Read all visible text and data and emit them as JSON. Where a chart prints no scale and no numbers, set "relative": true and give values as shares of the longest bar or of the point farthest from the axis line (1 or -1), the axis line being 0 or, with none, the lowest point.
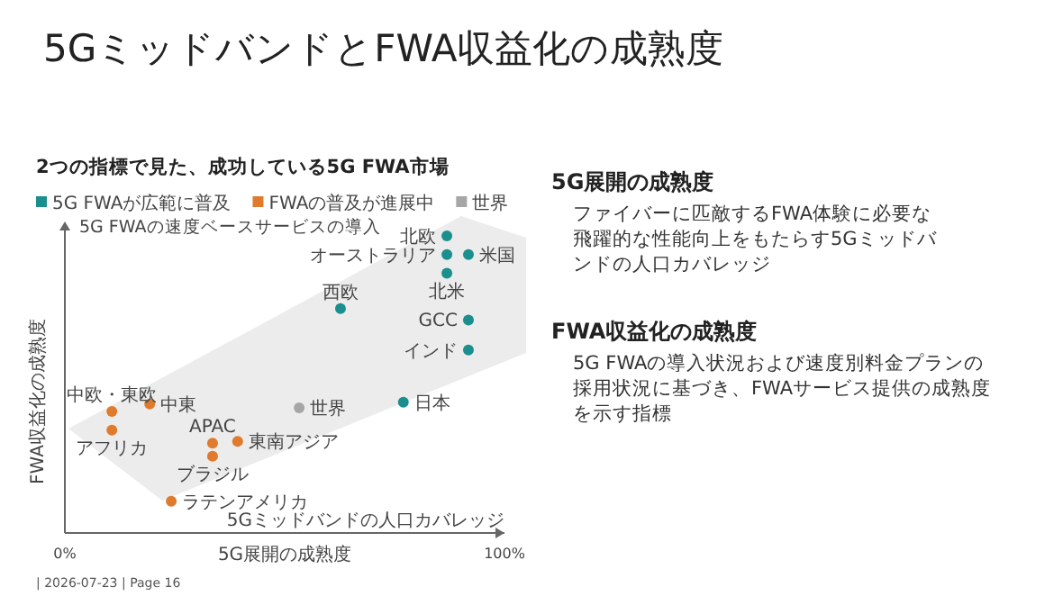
{
  "chart_data": {
    "type": "scatter",
    "title": "5GミッドバンドとFWA収益化の成熟度",
    "subtitle": "2つの指標で見た、成功している5G FWA市場",
    "xlabel": "5G展開の成熟度",
    "ylabel": "FWA収益化の成熟度",
    "relative": true,
    "xlim": [
      0,
      100
    ],
    "xticks": [
      {
        "value": 0,
        "label": "0%"
      },
      {
        "value": 100,
        "label": "100%"
      }
    ],
    "marker": "circle",
    "grid": false,
    "legend": "top left",
    "series": [
      {
        "name": "5G FWAが広範に普及",
        "color": "#1b8e8e",
        "x": [
          86.9,
          86.9,
          91.8,
          86.9,
          62.7,
          91.8,
          91.8,
          77.0
        ],
        "values": [
          1,
          0.937,
          0.937,
          0.874,
          0.755,
          0.717,
          0.616,
          0.44
        ]
      },
      {
        "name": "FWAの普及が進展中",
        "color": "#e07a2c",
        "x": [
          19.3,
          10.7,
          10.7,
          33.6,
          33.6,
          39.3,
          24.2
        ],
        "values": [
          0.434,
          0.409,
          0.346,
          0.302,
          0.258,
          0.308,
          0.107
        ]
      },
      {
        "name": "世界",
        "color": "#a6a6a6",
        "x": [
          53.3
        ],
        "values": [
          0.421
        ]
      }
    ],
    "annotations": [
      {
        "text": "北欧",
        "x": 86.9,
        "y": 1
      },
      {
        "text": "オーストラリア",
        "x": 86.9,
        "y": 0.937
      },
      {
        "text": "米国",
        "x": 91.8,
        "y": 0.937
      },
      {
        "text": "北米",
        "x": 86.9,
        "y": 0.874
      },
      {
        "text": "西欧",
        "x": 62.7,
        "y": 0.755
      },
      {
        "text": "GCC",
        "x": 91.8,
        "y": 0.717
      },
      {
        "text": "インド",
        "x": 91.8,
        "y": 0.616
      },
      {
        "text": "日本",
        "x": 77.0,
        "y": 0.44
      },
      {
        "text": "中東",
        "x": 19.3,
        "y": 0.434
      },
      {
        "text": "中欧・東欧",
        "x": 10.7,
        "y": 0.409
      },
      {
        "text": "アフリカ",
        "x": 10.7,
        "y": 0.346
      },
      {
        "text": "APAC",
        "x": 33.6,
        "y": 0.302
      },
      {
        "text": "ブラジル",
        "x": 33.6,
        "y": 0.258
      },
      {
        "text": "東南アジア",
        "x": 39.3,
        "y": 0.308
      },
      {
        "text": "ラテンアメリカ",
        "x": 24.2,
        "y": 0.107
      },
      {
        "text": "世界",
        "x": 53.3,
        "y": 0.421
      },
      "5G FWAの速度ベースサービスの導入",
      "5Gミッドバンドの人口カバレッジ",
      "5G展開の成熟度",
      "ファイバーに匹敵するFWA体験に必要な飛躍的な性能向上をもたらす5Gミッドバンドの人口カバレッジ",
      "FWA収益化の成熟度",
      "5G FWAの導入状況および速度別料金プランの採用状況に基づき、FWAサービス提供の成熟度を示す指標",
      "| 2026-07-23 | Page 16"
    ]
  }
}
